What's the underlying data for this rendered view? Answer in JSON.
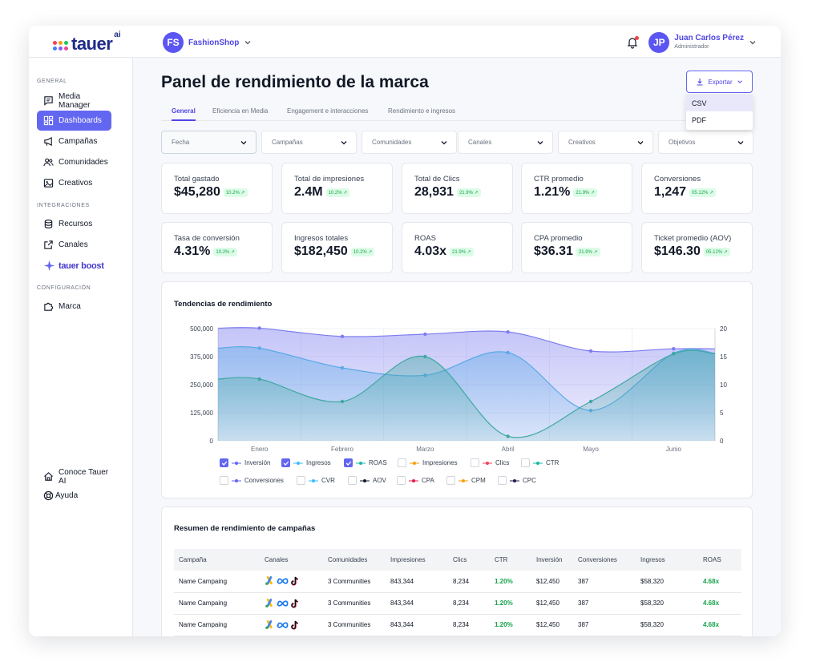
{
  "brand": {
    "logo_text": "tauer",
    "logo_suffix": "ai"
  },
  "workspace": {
    "initials": "FS",
    "name": "FashionShop"
  },
  "user": {
    "initials": "JP",
    "name": "Juan Carlos Pérez",
    "role": "Administrador"
  },
  "sidebar": {
    "sections": [
      "GENERAL",
      "INTEGRACIONES",
      "CONFIGURACIÓN"
    ],
    "general": [
      {
        "label": "Media Manager",
        "icon": "chat-icon"
      },
      {
        "label": "Dashboards",
        "icon": "dashboard-icon",
        "active": true
      },
      {
        "label": "Campañas",
        "icon": "megaphone-icon"
      },
      {
        "label": "Comunidades",
        "icon": "users-icon"
      },
      {
        "label": "Creativos",
        "icon": "image-icon"
      }
    ],
    "integraciones": [
      {
        "label": "Recursos",
        "icon": "database-icon"
      },
      {
        "label": "Canales",
        "icon": "external-link-icon"
      }
    ],
    "boost_label": "tauer boost",
    "configuracion": [
      {
        "label": "Marca",
        "icon": "puzzle-icon"
      }
    ],
    "bottom": [
      {
        "label": "Conoce Tauer AI",
        "icon": "home-icon"
      },
      {
        "label": "Ayuda",
        "icon": "lifebuoy-icon"
      }
    ]
  },
  "page": {
    "title": "Panel de rendimiento de la marca"
  },
  "export": {
    "label": "Exportar",
    "options": [
      "CSV",
      "PDF"
    ],
    "highlighted": "CSV"
  },
  "tabs": [
    {
      "label": "General",
      "active": true
    },
    {
      "label": "Eficiencia en Media"
    },
    {
      "label": "Engagement e interacciones"
    },
    {
      "label": "Rendimiento e ingresos"
    }
  ],
  "filters": [
    "Fecha",
    "Campañas",
    "Comunidades",
    "Canales",
    "Creativos",
    "Objetivos"
  ],
  "kpis": [
    {
      "label": "Total gastado",
      "value": "$45,280",
      "badge": "10.2%"
    },
    {
      "label": "Total de impresiones",
      "value": "2.4M",
      "badge": "10.2%"
    },
    {
      "label": "Total de Clics",
      "value": "28,931",
      "badge": "21.9%"
    },
    {
      "label": "CTR promedio",
      "value": "1.21%",
      "badge": "21.9%"
    },
    {
      "label": "Conversiones",
      "value": "1,247",
      "badge": "05.12%"
    },
    {
      "label": "Tasa de conversión",
      "value": "4.31%",
      "badge": "10.2%"
    },
    {
      "label": "Ingresos totales",
      "value": "$182,450",
      "badge": "10.2%"
    },
    {
      "label": "ROAS",
      "value": "4.03x",
      "badge": "21.9%"
    },
    {
      "label": "CPA promedio",
      "value": "$36.31",
      "badge": "21.9%"
    },
    {
      "label": "Ticket promedio (AOV)",
      "value": "$146.30",
      "badge": "05.12%"
    }
  ],
  "chart_panel": {
    "title": "Tendencias de rendimiento"
  },
  "chart_data": {
    "type": "area",
    "title": "Tendencias de rendimiento",
    "x": [
      "Enero",
      "Febrero",
      "Marzo",
      "Abril",
      "Mayo",
      "Junio"
    ],
    "y_left": {
      "ticks": [
        0,
        125000,
        250000,
        375000,
        500000
      ],
      "tick_labels": [
        "0",
        "125,000",
        "250,000",
        "375,000",
        "500,000"
      ],
      "ylim": [
        0,
        500000
      ]
    },
    "y_right": {
      "ticks": [
        0,
        5,
        10,
        15,
        20
      ],
      "ylim": [
        0,
        20
      ]
    },
    "grid": true,
    "series": [
      {
        "name": "Inversión",
        "axis": "left",
        "color": "#7c7cf0",
        "values": [
          502000,
          465000,
          475000,
          485000,
          400000,
          410000
        ],
        "checked": true
      },
      {
        "name": "Ingresos",
        "axis": "left",
        "color": "#5aa9e6",
        "values": [
          413000,
          325000,
          292000,
          393000,
          135000,
          390000
        ],
        "checked": true
      },
      {
        "name": "ROAS",
        "axis": "right",
        "color": "#3fa8a2",
        "values": [
          11,
          7,
          15,
          0.8,
          7,
          15.5
        ],
        "checked": true
      }
    ],
    "legend": [
      {
        "name": "Inversión",
        "color": "#6366f1",
        "checked": true
      },
      {
        "name": "Ingresos",
        "color": "#38bdf8",
        "checked": true
      },
      {
        "name": "ROAS",
        "color": "#14b8a6",
        "checked": true
      },
      {
        "name": "Impresiones",
        "color": "#f59e0b",
        "checked": false
      },
      {
        "name": "Clics",
        "color": "#f43f5e",
        "checked": false
      },
      {
        "name": "CTR",
        "color": "#14b8a6",
        "checked": false
      },
      {
        "name": "Conversiones",
        "color": "#6366f1",
        "checked": false
      },
      {
        "name": "CVR",
        "color": "#38bdf8",
        "checked": false
      },
      {
        "name": "AOV",
        "color": "#111827",
        "checked": false
      },
      {
        "name": "CPA",
        "color": "#e11d48",
        "checked": false
      },
      {
        "name": "CPM",
        "color": "#f59e0b",
        "checked": false
      },
      {
        "name": "CPC",
        "color": "#1e1b4b",
        "checked": false
      }
    ]
  },
  "campaigns": {
    "title": "Resumen de rendimiento de campañas",
    "columns": [
      "Campaña",
      "Canales",
      "Comunidades",
      "Impresiones",
      "Clics",
      "CTR",
      "Inversión",
      "Conversiones",
      "Ingresos",
      "ROAS"
    ],
    "rows": [
      {
        "name": "Name Campaing",
        "communities": "3 Communities",
        "impressions": "843,344",
        "clicks": "8,234",
        "ctr": "1.20%",
        "spend": "$12,450",
        "conversions": "387",
        "revenue": "$58,320",
        "roas": "4.68x"
      },
      {
        "name": "Name Campaing",
        "communities": "3 Communities",
        "impressions": "843,344",
        "clicks": "8,234",
        "ctr": "1.20%",
        "spend": "$12,450",
        "conversions": "387",
        "revenue": "$58,320",
        "roas": "4.68x"
      },
      {
        "name": "Name Campaing",
        "communities": "3 Communities",
        "impressions": "843,344",
        "clicks": "8,234",
        "ctr": "1.20%",
        "spend": "$12,450",
        "conversions": "387",
        "revenue": "$58,320",
        "roas": "4.68x"
      }
    ]
  },
  "colors": {
    "accent": "#6366f1",
    "positive": "#16a34a",
    "badge_bg": "#dcfce7"
  }
}
